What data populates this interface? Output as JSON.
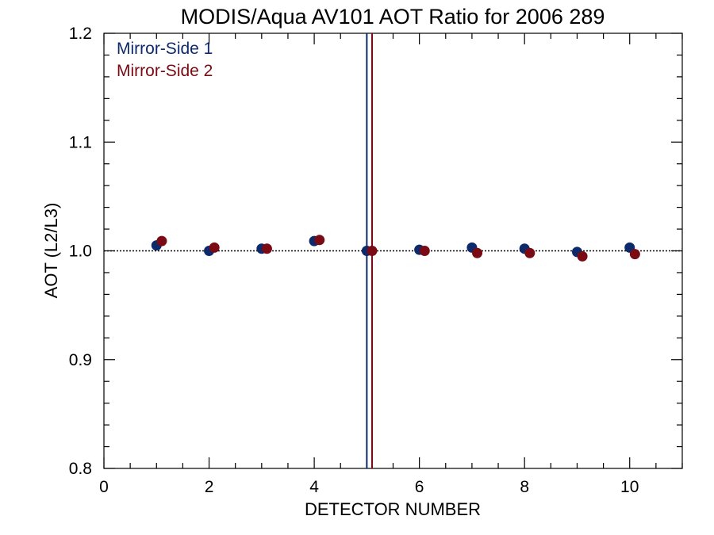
{
  "chart_data": {
    "type": "scatter",
    "title": "MODIS/Aqua AV101 AOT Ratio for 2006 289",
    "xlabel": "DETECTOR NUMBER",
    "ylabel": "AOT (L2/L3)",
    "xlim": [
      0,
      11
    ],
    "ylim": [
      0.8,
      1.2
    ],
    "x_ticks": [
      0,
      2,
      4,
      6,
      8,
      10
    ],
    "x_tick_labels": [
      "0",
      "2",
      "4",
      "6",
      "8",
      "10"
    ],
    "y_ticks": [
      0.8,
      0.9,
      1.0,
      1.1,
      1.2
    ],
    "y_tick_labels": [
      "0.8",
      "0.9",
      "1.0",
      "1.1",
      "1.2"
    ],
    "reference_line_y": 1.0,
    "vertical_lines": [
      {
        "x": 5.0,
        "color": "#0d2a6b"
      },
      {
        "x": 5.1,
        "color": "#7a0a14"
      }
    ],
    "legend_position": "top-left",
    "grid": false,
    "series": [
      {
        "name": "Mirror-Side 1",
        "color": "#0d2a6b",
        "x": [
          1,
          2,
          3,
          4,
          5,
          6,
          7,
          8,
          9,
          10
        ],
        "y": [
          1.005,
          1.0,
          1.002,
          1.009,
          1.0,
          1.001,
          1.003,
          1.002,
          0.999,
          1.003
        ]
      },
      {
        "name": "Mirror-Side 2",
        "color": "#7a0a14",
        "x": [
          1.1,
          2.1,
          3.1,
          4.1,
          5.1,
          6.1,
          7.1,
          8.1,
          9.1,
          10.1
        ],
        "y": [
          1.009,
          1.003,
          1.002,
          1.01,
          1.0,
          1.0,
          0.998,
          0.998,
          0.995,
          0.997
        ]
      }
    ]
  }
}
